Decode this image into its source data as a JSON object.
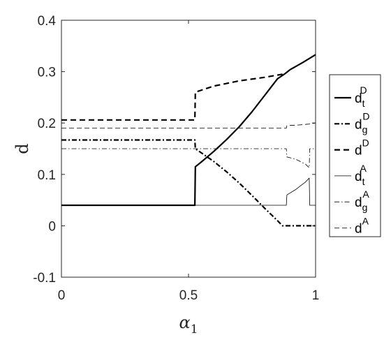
{
  "chart_data": {
    "type": "line",
    "title": "",
    "xlabel": "α",
    "xlabel_sub": "1",
    "ylabel": "d",
    "xlim": [
      0,
      1
    ],
    "ylim": [
      -0.1,
      0.4
    ],
    "xticks": [
      0,
      0.5,
      1
    ],
    "yticks": [
      -0.1,
      0,
      0.1,
      0.2,
      0.3,
      0.4
    ],
    "grid": false,
    "legend_position": "outside-right",
    "series": [
      {
        "name": "d_t^D",
        "base": "d",
        "sub": "t",
        "sup": "D",
        "style": "solid",
        "weight": "thick",
        "color": "#000000",
        "points": [
          [
            0,
            0.04
          ],
          [
            0.525,
            0.04
          ],
          [
            0.527,
            0.115
          ],
          [
            0.55,
            0.124
          ],
          [
            0.6,
            0.145
          ],
          [
            0.65,
            0.168
          ],
          [
            0.7,
            0.193
          ],
          [
            0.75,
            0.222
          ],
          [
            0.8,
            0.254
          ],
          [
            0.85,
            0.286
          ],
          [
            0.88,
            0.296
          ],
          [
            0.9,
            0.304
          ],
          [
            0.95,
            0.318
          ],
          [
            1,
            0.333
          ]
        ]
      },
      {
        "name": "d_g^D",
        "base": "d",
        "sub": "g",
        "sup": "D",
        "style": "dashdot",
        "weight": "thick",
        "color": "#000000",
        "points": [
          [
            0,
            0.167
          ],
          [
            0.525,
            0.167
          ],
          [
            0.527,
            0.15
          ],
          [
            0.6,
            0.125
          ],
          [
            0.65,
            0.105
          ],
          [
            0.7,
            0.083
          ],
          [
            0.75,
            0.059
          ],
          [
            0.8,
            0.034
          ],
          [
            0.85,
            0.01
          ],
          [
            0.87,
            0
          ],
          [
            1,
            0
          ]
        ]
      },
      {
        "name": "d^D",
        "base": "d",
        "sub": "",
        "sup": "D",
        "style": "dashed",
        "weight": "thick",
        "color": "#000000",
        "points": [
          [
            0,
            0.206
          ],
          [
            0.525,
            0.206
          ],
          [
            0.527,
            0.26
          ],
          [
            0.6,
            0.272
          ],
          [
            0.7,
            0.282
          ],
          [
            0.8,
            0.289
          ],
          [
            0.87,
            0.295
          ]
        ]
      },
      {
        "name": "d_t^A",
        "base": "d",
        "sub": "t",
        "sup": "A",
        "style": "solid",
        "weight": "thin",
        "color": "#000000",
        "points": [
          [
            0,
            0.04
          ],
          [
            0.885,
            0.04
          ],
          [
            0.887,
            0.06
          ],
          [
            0.92,
            0.07
          ],
          [
            0.96,
            0.085
          ],
          [
            0.975,
            0.093
          ],
          [
            0.977,
            0.04
          ],
          [
            1,
            0.04
          ]
        ]
      },
      {
        "name": "d_g^A",
        "base": "d",
        "sub": "g",
        "sup": "A",
        "style": "dashdot",
        "weight": "thin",
        "color": "#000000",
        "points": [
          [
            0,
            0.15
          ],
          [
            0.885,
            0.15
          ],
          [
            0.887,
            0.134
          ],
          [
            0.92,
            0.13
          ],
          [
            0.96,
            0.12
          ],
          [
            0.975,
            0.113
          ],
          [
            0.977,
            0.15
          ],
          [
            1,
            0.15
          ]
        ]
      },
      {
        "name": "d^A",
        "base": "d",
        "sub": "",
        "sup": "A",
        "style": "dashed",
        "weight": "thin",
        "color": "#000000",
        "points": [
          [
            0,
            0.19
          ],
          [
            0.885,
            0.19
          ],
          [
            0.887,
            0.195
          ],
          [
            0.93,
            0.196
          ],
          [
            0.975,
            0.198
          ],
          [
            1,
            0.2
          ]
        ]
      }
    ]
  }
}
